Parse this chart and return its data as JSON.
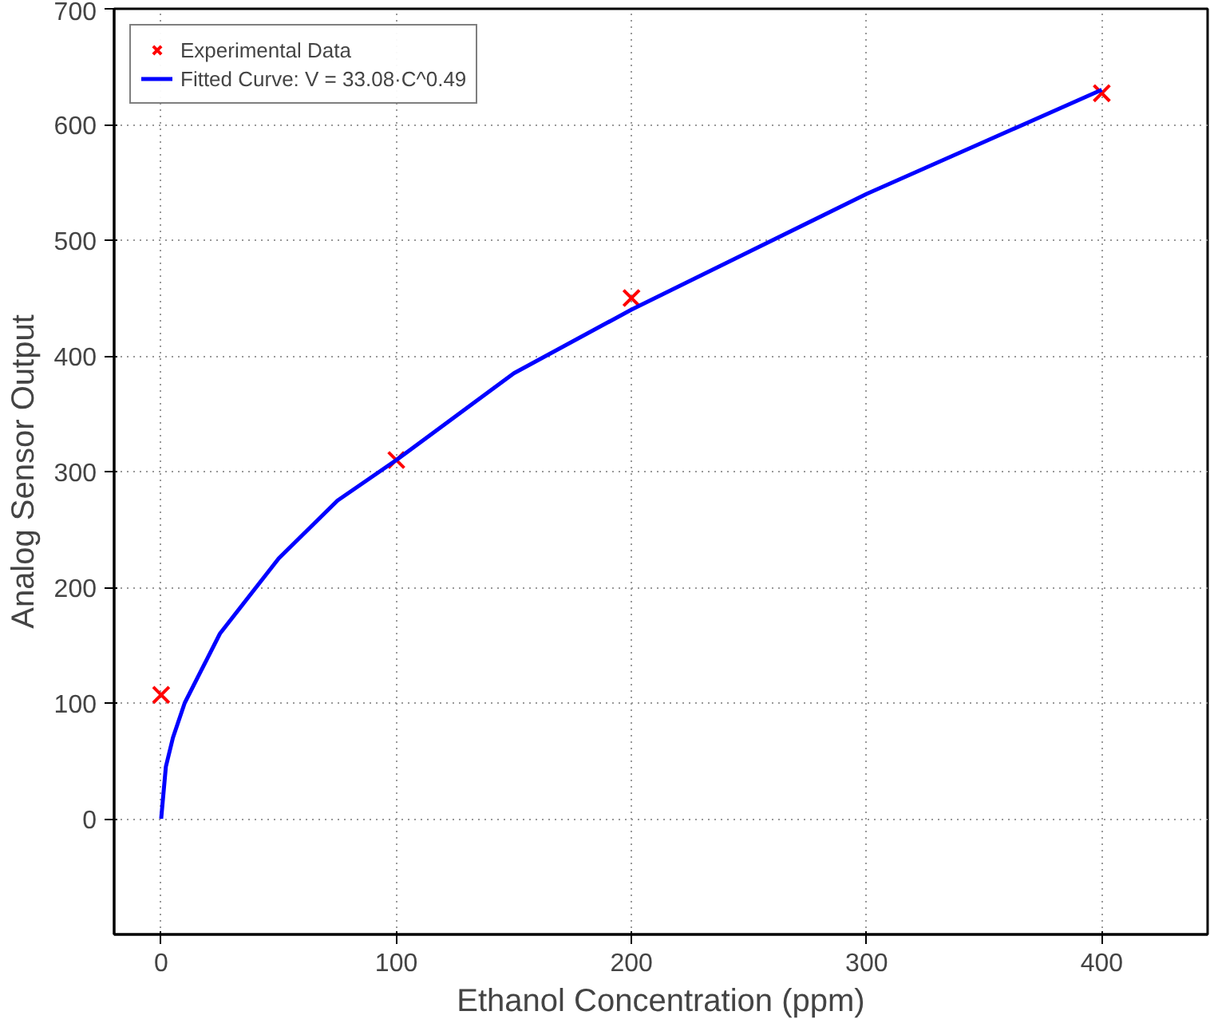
{
  "chart_data": {
    "type": "scatter",
    "xlabel": "Ethanol Concentration (ppm)",
    "ylabel": "Analog Sensor Output",
    "xlim": [
      -20,
      445
    ],
    "ylim": [
      -100,
      700
    ],
    "xticks": [
      0,
      100,
      200,
      300,
      400
    ],
    "yticks": [
      0,
      100,
      200,
      300,
      400,
      500,
      600,
      700
    ],
    "grid": true,
    "legend": "top left",
    "series": [
      {
        "name": "Experimental Data",
        "marker": "cross",
        "color": "#ff0000",
        "x": [
          0,
          100,
          200,
          400
        ],
        "values": [
          107,
          310,
          450,
          627
        ]
      },
      {
        "name": "Fitted Curve: V = 33.08·C^0.49",
        "type": "line",
        "color": "#0000ff",
        "line_style": "solid",
        "marker": "none",
        "x": [
          0,
          2,
          5,
          10,
          25,
          50,
          75,
          100,
          150,
          200,
          250,
          300,
          350,
          400
        ],
        "values": [
          0,
          45,
          70,
          100,
          160,
          225,
          275,
          310,
          385,
          440,
          490,
          540,
          585,
          630
        ]
      }
    ]
  }
}
